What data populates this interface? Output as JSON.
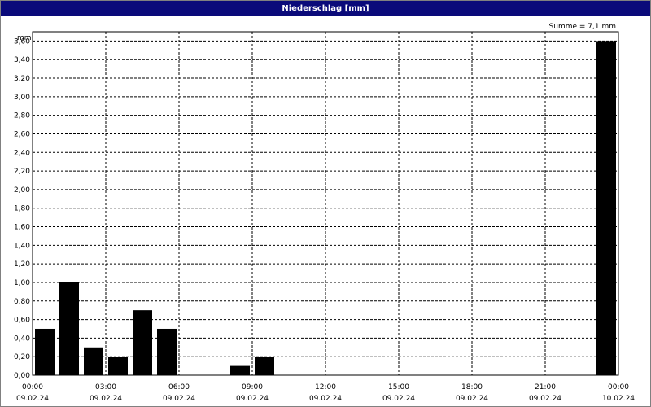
{
  "window": {
    "title": "Niederschlag [mm]"
  },
  "chart_data": {
    "type": "bar",
    "title": "Niederschlag [mm]",
    "ylabel": "mm",
    "annotation": "Summe = 7,1 mm",
    "ylim": [
      0,
      3.7
    ],
    "yticks": [
      0,
      0.2,
      0.4,
      0.6,
      0.8,
      1.0,
      1.2,
      1.4,
      1.6,
      1.8,
      2.0,
      2.2,
      2.4,
      2.6,
      2.8,
      3.0,
      3.2,
      3.4,
      3.6
    ],
    "ytick_labels": [
      "0,00",
      "0,20",
      "0,40",
      "0,60",
      "0,80",
      "1,00",
      "1,20",
      "1,40",
      "1,60",
      "1,80",
      "2,00",
      "2,20",
      "2,40",
      "2,60",
      "2,80",
      "3,00",
      "3,20",
      "3,40",
      "3,60"
    ],
    "xlim_hours": [
      0,
      24
    ],
    "xticks": [
      {
        "hour": 0,
        "time": "00:00",
        "date": "09.02.24"
      },
      {
        "hour": 3,
        "time": "03:00",
        "date": "09.02.24"
      },
      {
        "hour": 6,
        "time": "06:00",
        "date": "09.02.24"
      },
      {
        "hour": 9,
        "time": "09:00",
        "date": "09.02.24"
      },
      {
        "hour": 12,
        "time": "12:00",
        "date": "09.02.24"
      },
      {
        "hour": 15,
        "time": "15:00",
        "date": "09.02.24"
      },
      {
        "hour": 18,
        "time": "18:00",
        "date": "09.02.24"
      },
      {
        "hour": 21,
        "time": "21:00",
        "date": "09.02.24"
      },
      {
        "hour": 24,
        "time": "00:00",
        "date": "10.02.24"
      }
    ],
    "interval_hours": 1,
    "bars": [
      {
        "start_hour": 0,
        "value": 0.5
      },
      {
        "start_hour": 1,
        "value": 1.0
      },
      {
        "start_hour": 2,
        "value": 0.3
      },
      {
        "start_hour": 3,
        "value": 0.2
      },
      {
        "start_hour": 4,
        "value": 0.7
      },
      {
        "start_hour": 5,
        "value": 0.5
      },
      {
        "start_hour": 8,
        "value": 0.1
      },
      {
        "start_hour": 9,
        "value": 0.2
      },
      {
        "start_hour": 23,
        "value": 3.6
      }
    ],
    "grid": true,
    "colors": {
      "bar": "#000000",
      "grid": "#000000",
      "title_bar": "#0a0a7a"
    }
  }
}
